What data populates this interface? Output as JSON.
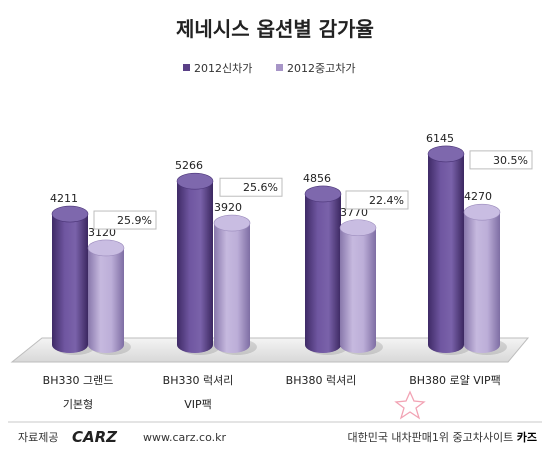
{
  "chart_data": {
    "type": "bar",
    "title": "제네시스 옵션별 감가율",
    "categories": [
      {
        "line1": "BH330 그랜드",
        "line2": "기본형"
      },
      {
        "line1": "BH330 럭셔리",
        "line2": "VIP팩"
      },
      {
        "line1": "BH380 럭셔리",
        "line2": ""
      },
      {
        "line1": "BH380 로얄 VIP팩",
        "line2": ""
      }
    ],
    "series": [
      {
        "name": "2012신차가",
        "values": [
          4211,
          5266,
          4856,
          6145
        ],
        "color": "#5a4087"
      },
      {
        "name": "2012중고차가",
        "values": [
          3120,
          3920,
          3770,
          4270
        ],
        "color": "#a795c7"
      }
    ],
    "annotations": [
      "25.9%",
      "25.6%",
      "22.4%",
      "30.5%"
    ],
    "ylim": [
      0,
      7000
    ],
    "legend_position": "top-center",
    "grid": false
  },
  "footer": {
    "provider_label": "자료제공",
    "brand": "CARZ",
    "url": "www.carz.co.kr",
    "tagline": "대한민국 내차판매1위 중고차사이트",
    "tagline_brand": "카즈"
  }
}
